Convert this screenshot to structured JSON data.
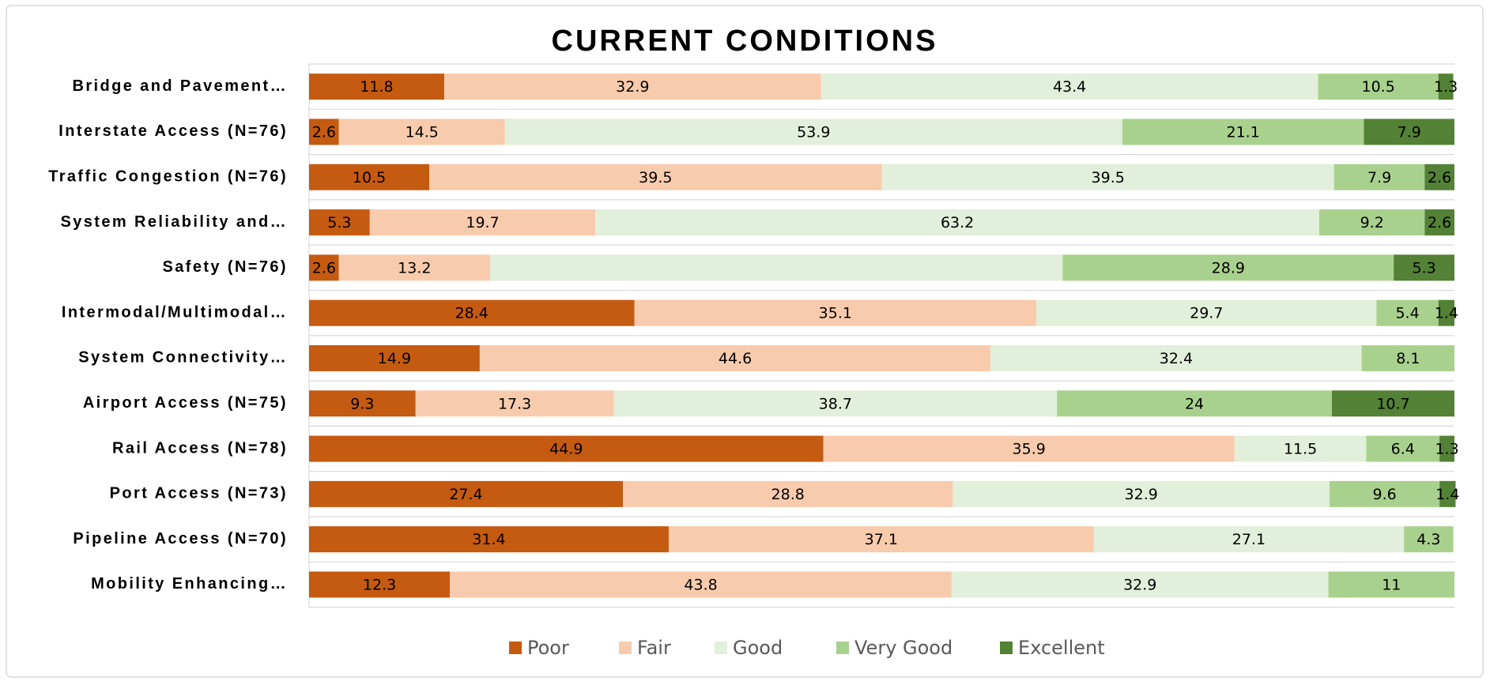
{
  "chart_data": {
    "type": "stacked-bar-horizontal",
    "title": "CURRENT CONDITIONS",
    "categories": [
      "Bridge and Pavement…",
      "Interstate Access (N=76)",
      "Traffic Congestion (N=76)",
      "System Reliability and…",
      "Safety (N=76)",
      "Intermodal/Multimodal…",
      "System Connectivity…",
      "Airport Access (N=75)",
      "Rail Access (N=78)",
      "Port Access (N=73)",
      "Pipeline Access (N=70)",
      "Mobility Enhancing…"
    ],
    "series": [
      {
        "name": "Poor",
        "color": "#c55a11",
        "values": [
          11.8,
          2.6,
          10.5,
          5.3,
          2.6,
          28.4,
          14.9,
          9.3,
          44.9,
          27.4,
          31.4,
          12.3
        ]
      },
      {
        "name": "Fair",
        "color": "#f8cbad",
        "values": [
          32.9,
          14.5,
          39.5,
          19.7,
          13.2,
          35.1,
          44.6,
          17.3,
          35.9,
          28.8,
          37.1,
          43.8
        ]
      },
      {
        "name": "Good",
        "color": "#e2efda",
        "values": [
          43.4,
          53.9,
          39.5,
          63.2,
          50,
          29.7,
          32.4,
          38.7,
          11.5,
          32.9,
          27.1,
          32.9
        ],
        "value_labels": [
          "43.4",
          "53.9",
          "39.5",
          "63.2",
          null,
          "29.7",
          "32.4",
          "38.7",
          "11.5",
          "32.9",
          "27.1",
          "32.9"
        ]
      },
      {
        "name": "Very Good",
        "color": "#a9d18e",
        "values": [
          10.5,
          21.1,
          7.9,
          9.2,
          28.9,
          5.4,
          8.1,
          24,
          6.4,
          9.6,
          4.3,
          11
        ]
      },
      {
        "name": "Excellent",
        "color": "#538135",
        "values": [
          1.3,
          7.9,
          2.6,
          2.6,
          5.3,
          1.4,
          null,
          10.7,
          1.3,
          1.4,
          null,
          null
        ]
      }
    ],
    "xlim": [
      0,
      100
    ],
    "legend": "bottom"
  }
}
